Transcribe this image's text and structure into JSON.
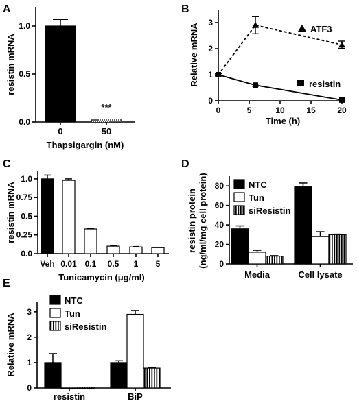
{
  "chart_data": [
    {
      "panel": "A",
      "type": "bar",
      "ylabel": "resistin mRNA",
      "xlabel": "Thapsigargin (nM)",
      "categories": [
        "0",
        "50"
      ],
      "values": [
        1.0,
        0.01
      ],
      "errors": [
        0.07,
        0.005
      ],
      "fills": [
        "#000000",
        "#ffffff"
      ],
      "yticks": [
        "0.0",
        "0.5",
        "1.0"
      ],
      "ylim": [
        0,
        1.2
      ],
      "annotation": "***"
    },
    {
      "panel": "B",
      "type": "line",
      "ylabel": "Relative mRNA",
      "xlabel": "Time (h)",
      "xticks": [
        "0",
        "5",
        "10",
        "15",
        "20"
      ],
      "yticks": [
        "0",
        "1",
        "2",
        "3"
      ],
      "xlim": [
        0,
        20
      ],
      "ylim": [
        0,
        3.5
      ],
      "series": [
        {
          "name": "ATF3",
          "marker": "triangle",
          "dash": true,
          "x": [
            0,
            6,
            20
          ],
          "y": [
            1.0,
            2.9,
            2.15
          ],
          "err": [
            0.05,
            0.33,
            0.14
          ]
        },
        {
          "name": "resistin",
          "marker": "square",
          "dash": false,
          "x": [
            0,
            6,
            20
          ],
          "y": [
            1.0,
            0.6,
            0.03
          ],
          "err": [
            0.04,
            0.04,
            0.02
          ]
        }
      ]
    },
    {
      "panel": "C",
      "type": "bar",
      "ylabel": "resistin mRNA",
      "xlabel": "Tunicamycin (μg/ml)",
      "categories": [
        "Veh",
        "0.01",
        "0.1",
        "0.5",
        "1",
        "5"
      ],
      "values": [
        1.0,
        0.98,
        0.33,
        0.1,
        0.09,
        0.08
      ],
      "errors": [
        0.05,
        0.02,
        0.01,
        0.005,
        0.005,
        0.005
      ],
      "fills": [
        "#000000",
        "#ffffff",
        "#ffffff",
        "#ffffff",
        "#ffffff",
        "#ffffff"
      ],
      "yticks": [
        "0.0",
        "0.25",
        "0.5",
        "0.75",
        "1.0"
      ],
      "ylim": [
        0,
        1.1
      ]
    },
    {
      "panel": "D",
      "type": "bar",
      "ylabel": "resistin protein",
      "ylabel2": "(ng/ml/mg cell protein)",
      "categories": [
        "Media",
        "Cell lysate"
      ],
      "series": [
        {
          "name": "NTC",
          "fill": "#000000",
          "values": [
            36,
            79
          ],
          "err": [
            3,
            4
          ]
        },
        {
          "name": "Tun",
          "fill": "#ffffff",
          "values": [
            12,
            28
          ],
          "err": [
            2,
            5
          ]
        },
        {
          "name": "siResistin",
          "fill": "stripes",
          "values": [
            8,
            30
          ],
          "err": [
            0.5,
            0.5
          ]
        }
      ],
      "yticks": [
        "0",
        "20",
        "40",
        "60",
        "80"
      ],
      "ylim": [
        0,
        90
      ]
    },
    {
      "panel": "E",
      "type": "bar",
      "ylabel": "Relative mRNA",
      "categories": [
        "resistin",
        "BiP"
      ],
      "series": [
        {
          "name": "NTC",
          "fill": "#000000",
          "values": [
            1.0,
            1.0
          ],
          "err": [
            0.35,
            0.07
          ]
        },
        {
          "name": "Tun",
          "fill": "#ffffff",
          "values": [
            0.03,
            2.9
          ],
          "err": [
            0.01,
            0.15
          ]
        },
        {
          "name": "siResistin",
          "fill": "stripes",
          "values": [
            0.03,
            0.78
          ],
          "err": [
            0.01,
            0.03
          ]
        }
      ],
      "yticks": [
        "0",
        "1",
        "2",
        "3"
      ],
      "ylim": [
        0,
        3.4
      ]
    }
  ]
}
